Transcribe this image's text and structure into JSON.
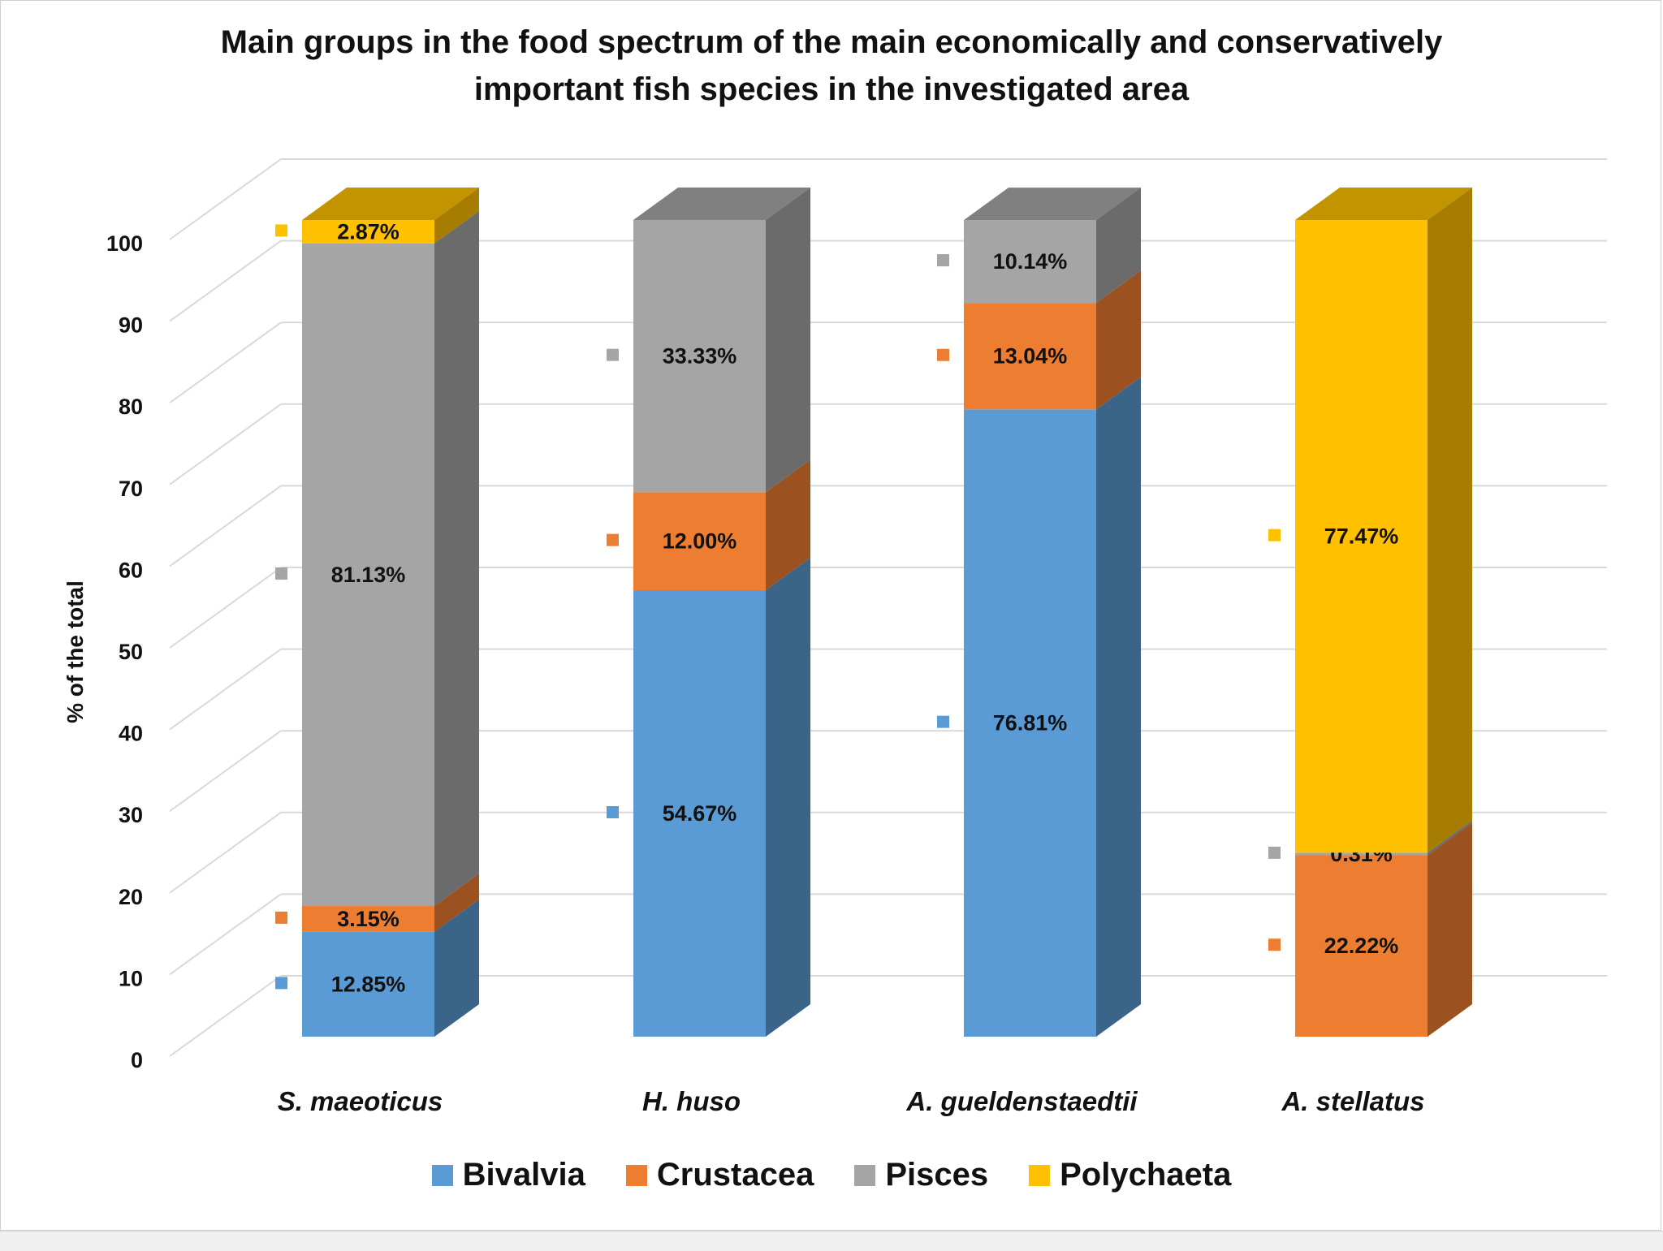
{
  "chart_data": {
    "type": "bar",
    "stacked": true,
    "three_d": true,
    "title_lines": [
      "Main groups in the food spectrum of the main economically and conservatively",
      "important fish species in the investigated area"
    ],
    "ylabel": "% of the total",
    "xlabel": "",
    "ylim": [
      0,
      100
    ],
    "yticks": [
      0,
      10,
      20,
      30,
      40,
      50,
      60,
      70,
      80,
      90,
      100
    ],
    "grid": true,
    "legend_position": "bottom",
    "categories": [
      "S. maeoticus",
      "H. huso",
      "A. gueldenstaedtii",
      "A. stellatus"
    ],
    "series": [
      {
        "name": "Bivalvia",
        "color": "#5B9BD5",
        "side": "#3A6589",
        "top": "#4A7FB0",
        "values": [
          12.85,
          54.67,
          76.81,
          0
        ],
        "labels": [
          "12.85%",
          "54.67%",
          "76.81%",
          ""
        ]
      },
      {
        "name": "Crustacea",
        "color": "#ED7D31",
        "side": "#9C5120",
        "top": "#C2662A",
        "values": [
          3.15,
          12.0,
          13.04,
          22.22
        ],
        "labels": [
          "3.15%",
          "12.00%",
          "13.04%",
          "22.22%"
        ]
      },
      {
        "name": "Pisces",
        "color": "#A5A5A5",
        "side": "#6B6B6B",
        "top": "#808080",
        "values": [
          81.13,
          33.33,
          10.14,
          0.31
        ],
        "labels": [
          "81.13%",
          "33.33%",
          "10.14%",
          "0.31%"
        ]
      },
      {
        "name": "Polychaeta",
        "color": "#FFC000",
        "side": "#A67D00",
        "top": "#C29400",
        "values": [
          2.87,
          0,
          0,
          77.47
        ],
        "labels": [
          "2.87%",
          "",
          "",
          "77.47%"
        ]
      }
    ]
  }
}
